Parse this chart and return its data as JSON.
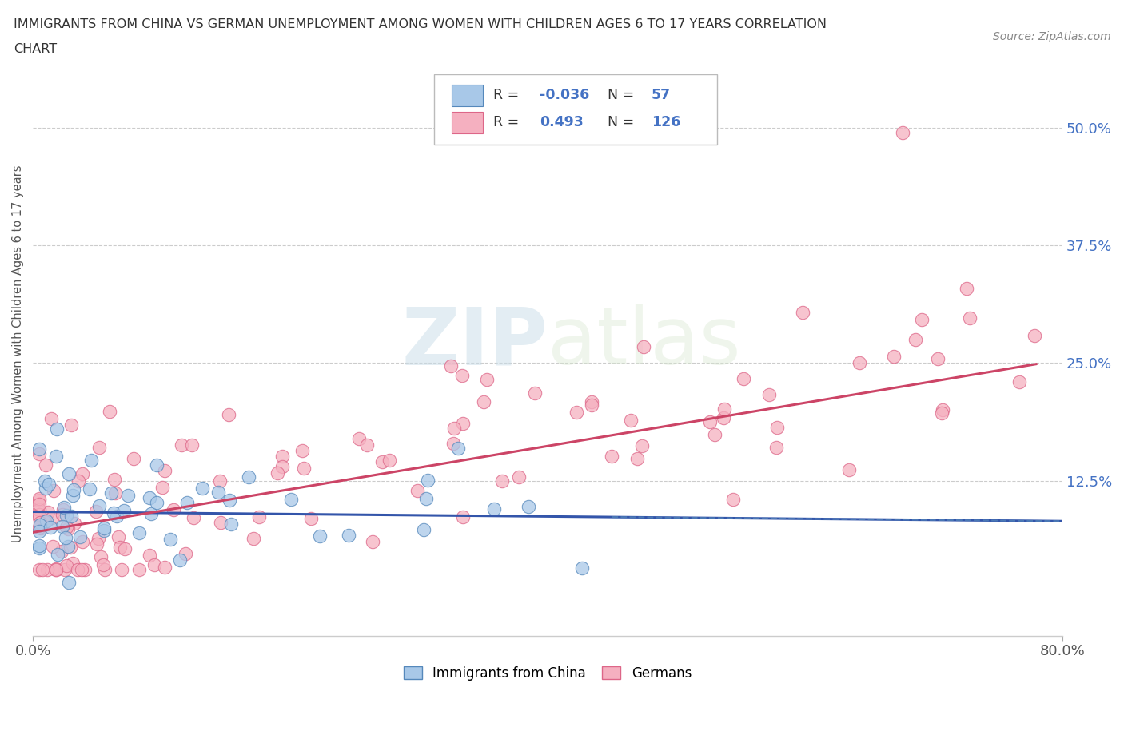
{
  "title_line1": "IMMIGRANTS FROM CHINA VS GERMAN UNEMPLOYMENT AMONG WOMEN WITH CHILDREN AGES 6 TO 17 YEARS CORRELATION",
  "title_line2": "CHART",
  "source": "Source: ZipAtlas.com",
  "ylabel_label": "Unemployment Among Women with Children Ages 6 to 17 years",
  "ytick_labels": [
    "12.5%",
    "25.0%",
    "37.5%",
    "50.0%"
  ],
  "ytick_values": [
    0.125,
    0.25,
    0.375,
    0.5
  ],
  "xmin": 0.0,
  "xmax": 0.8,
  "ymin": -0.04,
  "ymax": 0.56,
  "color_china": "#a8c8e8",
  "color_china_edge": "#5588bb",
  "color_german": "#f5b0c0",
  "color_german_edge": "#dd6688",
  "color_line_china": "#3355aa",
  "color_line_german": "#cc4466",
  "color_text_blue": "#4472c4",
  "watermark_color": "#d8e8f0",
  "watermark_text": "ZIPatlas"
}
